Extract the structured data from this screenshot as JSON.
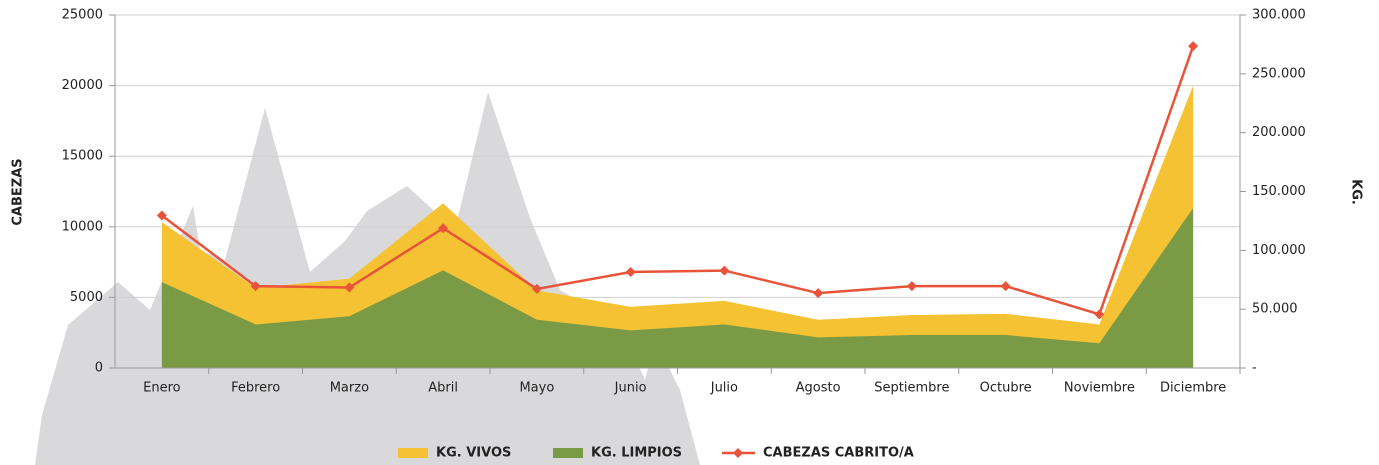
{
  "chart_data": {
    "type": "area-line",
    "categories": [
      "Enero",
      "Febrero",
      "Marzo",
      "Abril",
      "Mayo",
      "Junio",
      "Julio",
      "Agosto",
      "Septiembre",
      "Octubre",
      "Noviembre",
      "Diciembre"
    ],
    "series": [
      {
        "name": "KG. VIVOS",
        "color": "#f4c232",
        "kind": "area",
        "axis": "y2",
        "values": [
          124000,
          68000,
          76000,
          140000,
          66000,
          52000,
          57000,
          41000,
          45000,
          46000,
          37000,
          240000
        ]
      },
      {
        "name": "KG. LIMPIOS",
        "color": "#7a9a45",
        "kind": "area",
        "axis": "y2",
        "values": [
          73000,
          37000,
          44000,
          83000,
          41000,
          32000,
          37000,
          26000,
          28000,
          28000,
          21000,
          136000
        ]
      },
      {
        "name": "CABEZAS CABRITO/A",
        "color": "#e8533a",
        "kind": "line",
        "axis": "y",
        "values": [
          10800,
          5800,
          5700,
          9900,
          5600,
          6800,
          6900,
          5300,
          5800,
          5800,
          3800,
          22800
        ]
      }
    ],
    "ylabel": "CABEZAS",
    "y2label": "KG.",
    "ylim": [
      0,
      25000
    ],
    "yticks": [
      0,
      5000,
      10000,
      15000,
      20000,
      25000
    ],
    "y2lim": [
      0,
      300000
    ],
    "y2ticks": [
      {
        "value": 0,
        "label": "-"
      },
      {
        "value": 50000,
        "label": "50.000"
      },
      {
        "value": 100000,
        "label": "100.000"
      },
      {
        "value": 150000,
        "label": "150.000"
      },
      {
        "value": 200000,
        "label": "200.000"
      },
      {
        "value": 250000,
        "label": "250.000"
      },
      {
        "value": 300000,
        "label": "300.000"
      }
    ],
    "grid": true,
    "legend": "bottom"
  }
}
